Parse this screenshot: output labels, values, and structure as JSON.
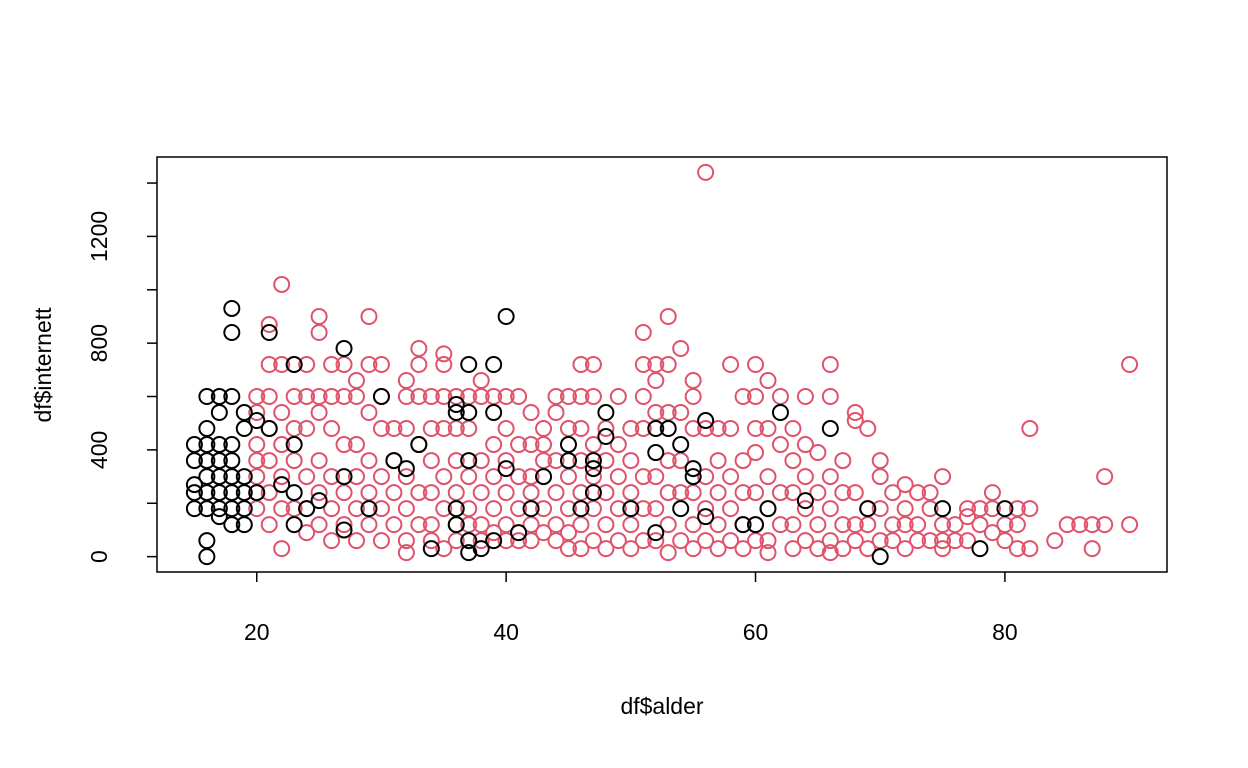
{
  "chart_data": {
    "type": "scatter",
    "xlabel": "df$alder",
    "ylabel": "df$internett",
    "xlim": [
      12,
      93
    ],
    "ylim": [
      -57.6,
      1497.6
    ],
    "xticks": [
      20,
      40,
      60,
      80
    ],
    "yticks": [
      0,
      400,
      800,
      1200
    ],
    "yticks_minor": [
      200,
      600,
      1000,
      1400
    ],
    "series": [
      {
        "color": "#DF536B",
        "x": [
          20,
          20,
          20,
          20,
          20,
          20,
          20,
          21,
          21,
          21,
          21,
          21,
          21,
          21,
          22,
          22,
          22,
          22,
          22,
          22,
          22,
          23,
          23,
          23,
          23,
          23,
          24,
          24,
          24,
          24,
          24,
          24,
          25,
          25,
          25,
          25,
          25,
          25,
          25,
          26,
          26,
          26,
          26,
          26,
          26,
          27,
          27,
          27,
          27,
          27,
          28,
          28,
          28,
          28,
          28,
          28,
          29,
          29,
          29,
          29,
          29,
          29,
          30,
          30,
          30,
          30,
          30,
          30,
          31,
          31,
          31,
          31,
          32,
          32,
          32,
          32,
          32,
          32,
          32,
          33,
          33,
          33,
          33,
          33,
          33,
          34,
          34,
          34,
          34,
          34,
          34,
          35,
          35,
          35,
          35,
          35,
          35,
          35,
          36,
          36,
          36,
          36,
          36,
          36,
          37,
          37,
          37,
          37,
          37,
          38,
          38,
          38,
          38,
          38,
          38,
          39,
          39,
          39,
          39,
          39,
          40,
          40,
          40,
          40,
          40,
          40,
          41,
          41,
          41,
          41,
          41,
          42,
          42,
          42,
          42,
          42,
          42,
          43,
          43,
          43,
          43,
          43,
          44,
          44,
          44,
          44,
          44,
          44,
          45,
          45,
          45,
          45,
          45,
          45,
          46,
          46,
          46,
          46,
          46,
          46,
          46,
          47,
          47,
          47,
          47,
          47,
          47,
          48,
          48,
          48,
          48,
          48,
          49,
          49,
          49,
          49,
          49,
          50,
          50,
          50,
          50,
          50,
          51,
          51,
          51,
          51,
          51,
          51,
          51,
          52,
          52,
          52,
          52,
          52,
          52,
          53,
          53,
          53,
          53,
          53,
          53,
          53,
          54,
          54,
          54,
          54,
          54,
          55,
          55,
          55,
          55,
          55,
          55,
          56,
          56,
          56,
          56,
          56,
          57,
          57,
          57,
          57,
          57,
          58,
          58,
          58,
          58,
          58,
          59,
          59,
          59,
          59,
          59,
          60,
          60,
          60,
          60,
          60,
          60,
          60,
          61,
          61,
          61,
          61,
          61,
          61,
          62,
          62,
          62,
          62,
          63,
          63,
          63,
          63,
          63,
          64,
          64,
          64,
          64,
          64,
          65,
          65,
          65,
          65,
          66,
          66,
          66,
          66,
          66,
          66,
          67,
          67,
          67,
          67,
          68,
          68,
          68,
          68,
          68,
          69,
          69,
          69,
          69,
          70,
          70,
          70,
          70,
          71,
          71,
          71,
          72,
          72,
          72,
          72,
          73,
          73,
          73,
          74,
          74,
          74,
          75,
          75,
          75,
          75,
          76,
          76,
          77,
          77,
          77,
          78,
          78,
          79,
          79,
          79,
          80,
          80,
          81,
          81,
          81,
          82,
          82,
          82,
          84,
          85,
          86,
          87,
          87,
          88,
          88,
          90,
          90
        ],
        "values": [
          600,
          540,
          420,
          360,
          300,
          240,
          180,
          870,
          720,
          600,
          480,
          360,
          240,
          120,
          1020,
          720,
          540,
          420,
          300,
          180,
          30,
          720,
          600,
          480,
          360,
          180,
          720,
          600,
          480,
          300,
          180,
          90,
          900,
          840,
          600,
          540,
          360,
          240,
          120,
          720,
          600,
          480,
          300,
          180,
          60,
          720,
          600,
          420,
          240,
          120,
          660,
          600,
          420,
          300,
          180,
          60,
          900,
          720,
          540,
          360,
          240,
          120,
          720,
          600,
          480,
          300,
          180,
          60,
          480,
          360,
          240,
          120,
          660,
          600,
          480,
          300,
          180,
          60,
          15,
          780,
          720,
          600,
          420,
          240,
          120,
          600,
          480,
          360,
          240,
          120,
          60,
          760,
          720,
          600,
          480,
          300,
          180,
          30,
          600,
          480,
          360,
          240,
          120,
          60,
          600,
          480,
          300,
          180,
          120,
          660,
          600,
          360,
          240,
          120,
          60,
          600,
          420,
          300,
          180,
          90,
          600,
          480,
          360,
          240,
          120,
          60,
          600,
          420,
          300,
          180,
          60,
          540,
          420,
          300,
          240,
          120,
          60,
          480,
          420,
          360,
          180,
          90,
          600,
          540,
          360,
          240,
          120,
          60,
          600,
          480,
          300,
          180,
          90,
          30,
          720,
          600,
          480,
          360,
          240,
          120,
          30,
          720,
          600,
          420,
          300,
          180,
          60,
          480,
          360,
          240,
          120,
          30,
          600,
          420,
          300,
          180,
          60,
          480,
          360,
          240,
          120,
          30,
          840,
          720,
          600,
          480,
          300,
          180,
          60,
          720,
          660,
          540,
          300,
          180,
          60,
          900,
          720,
          540,
          360,
          240,
          120,
          15,
          780,
          540,
          360,
          240,
          60,
          660,
          600,
          480,
          240,
          120,
          30,
          1440,
          480,
          300,
          180,
          60,
          480,
          360,
          240,
          120,
          30,
          720,
          480,
          300,
          180,
          60,
          600,
          360,
          240,
          120,
          30,
          720,
          600,
          480,
          390,
          240,
          120,
          60,
          660,
          480,
          300,
          180,
          60,
          15,
          600,
          420,
          240,
          120,
          480,
          360,
          240,
          120,
          30,
          600,
          420,
          300,
          180,
          60,
          390,
          240,
          120,
          30,
          720,
          600,
          300,
          180,
          60,
          15,
          360,
          240,
          120,
          30,
          540,
          510,
          240,
          120,
          60,
          480,
          180,
          120,
          30,
          360,
          300,
          180,
          60,
          240,
          120,
          60,
          270,
          180,
          120,
          30,
          240,
          120,
          60,
          240,
          180,
          60,
          300,
          120,
          60,
          30,
          120,
          60,
          180,
          150,
          60,
          180,
          120,
          240,
          180,
          90,
          120,
          60,
          180,
          120,
          30,
          480,
          180,
          30,
          60,
          120,
          120,
          120,
          30,
          300,
          120,
          720,
          120
        ]
      },
      {
        "color": "#000000",
        "x": [
          15,
          15,
          15,
          15,
          15,
          16,
          16,
          16,
          16,
          16,
          16,
          16,
          16,
          16,
          17,
          17,
          17,
          17,
          17,
          17,
          17,
          17,
          18,
          18,
          18,
          18,
          18,
          18,
          18,
          18,
          18,
          19,
          19,
          19,
          19,
          19,
          19,
          20,
          20,
          21,
          21,
          22,
          23,
          23,
          23,
          23,
          24,
          25,
          27,
          27,
          27,
          29,
          30,
          31,
          32,
          33,
          34,
          36,
          36,
          36,
          36,
          37,
          37,
          37,
          37,
          37,
          38,
          39,
          39,
          39,
          40,
          40,
          41,
          42,
          43,
          45,
          45,
          46,
          47,
          47,
          47,
          48,
          48,
          50,
          52,
          52,
          52,
          53,
          54,
          54,
          55,
          55,
          56,
          56,
          59,
          60,
          61,
          62,
          64,
          66,
          69,
          70,
          75,
          78,
          80
        ],
        "values": [
          420,
          360,
          270,
          240,
          180,
          0,
          60,
          480,
          600,
          420,
          360,
          300,
          240,
          180,
          600,
          540,
          420,
          360,
          300,
          240,
          180,
          150,
          930,
          840,
          600,
          420,
          360,
          300,
          240,
          180,
          120,
          540,
          480,
          300,
          240,
          180,
          120,
          510,
          240,
          840,
          480,
          270,
          720,
          420,
          240,
          120,
          180,
          210,
          780,
          300,
          100,
          180,
          600,
          360,
          330,
          420,
          30,
          570,
          540,
          180,
          120,
          720,
          540,
          360,
          60,
          15,
          30,
          720,
          540,
          60,
          900,
          330,
          90,
          180,
          300,
          420,
          360,
          180,
          360,
          330,
          240,
          540,
          450,
          180,
          480,
          390,
          90,
          480,
          420,
          180,
          330,
          300,
          510,
          150,
          120,
          120,
          180,
          540,
          210,
          480,
          180,
          0,
          180,
          30,
          180
        ]
      }
    ]
  }
}
